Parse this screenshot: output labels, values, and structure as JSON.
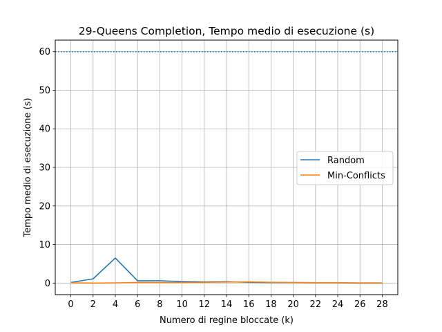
{
  "chart_data": {
    "type": "line",
    "title": "29-Queens Completion, Tempo medio di esecuzione (s)",
    "xlabel": "Numero di regine bloccate (k)",
    "ylabel": "Tempo medio di esecuzione (s)",
    "x": [
      0,
      2,
      4,
      6,
      8,
      10,
      12,
      14,
      16,
      18,
      20,
      22,
      24,
      26,
      28
    ],
    "xticks": [
      "0",
      "2",
      "4",
      "6",
      "8",
      "10",
      "12",
      "14",
      "16",
      "18",
      "20",
      "22",
      "24",
      "26",
      "28"
    ],
    "yticks": [
      "0",
      "10",
      "20",
      "30",
      "40",
      "50",
      "60"
    ],
    "xlim": [
      -1.4,
      29.4
    ],
    "ylim": [
      -3,
      63
    ],
    "grid": true,
    "legend_position": "center-right",
    "series": [
      {
        "name": "Random",
        "color": "#1f77b4",
        "values": [
          0.15,
          1.1,
          6.5,
          0.6,
          0.6,
          0.4,
          0.3,
          0.35,
          0.2,
          0.1,
          0.1,
          0.05,
          0.05,
          0.0,
          0.0
        ]
      },
      {
        "name": "Min-Conflicts",
        "color": "#ff7f0e",
        "values": [
          0.05,
          0.0,
          0.05,
          0.15,
          0.1,
          0.15,
          0.2,
          0.25,
          0.3,
          0.2,
          0.15,
          0.1,
          0.1,
          0.05,
          0.05
        ]
      }
    ],
    "reference_line": {
      "y": 60,
      "style": "dotted",
      "color": "#1f77b4"
    }
  }
}
